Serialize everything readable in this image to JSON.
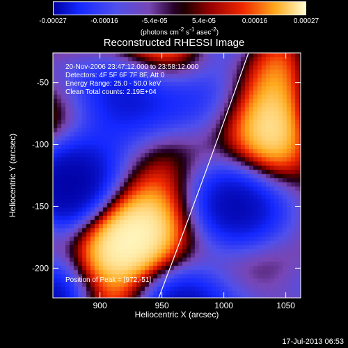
{
  "chart_data": {
    "type": "heatmap",
    "title": "Reconstructed RHESSI Image",
    "xlabel": "Heliocentric X (arcsec)",
    "ylabel": "Heliocentric Y (arcsec)",
    "xlim": [
      862,
      1062
    ],
    "ylim": [
      -224,
      -26
    ],
    "x_ticks": [
      "900",
      "950",
      "1000",
      "1050"
    ],
    "y_ticks": [
      "-50",
      "-100",
      "-150",
      "-200"
    ],
    "colorbar": {
      "range": [
        -0.00027,
        0.00027
      ],
      "ticks": [
        "-0.00027",
        "-0.00016",
        "-5.4e-05",
        "5.4e-05",
        "0.00016",
        "0.00027"
      ],
      "label_main": "(photons cm",
      "label_sup1": "-2",
      "label_mid": " s",
      "label_sup2": "-1",
      "label_end": " asec",
      "label_sup3": "-2",
      "label_close": ")"
    },
    "annotations": {
      "time": "20-Nov-2006 23:47:12.000 to 23:58:12.000",
      "detectors": "Detectors: 4F 5F 6F 7F 8F, Att 0",
      "energy": "Energy Range: 25.0 - 50.0 keV",
      "clean": "Clean    Total counts: 2.19E+04",
      "peak": "Position of Peak = [972,-51]"
    },
    "grid": false,
    "limb_curve": true
  },
  "footer": {
    "date": "17-Jul-2013 06:53"
  }
}
